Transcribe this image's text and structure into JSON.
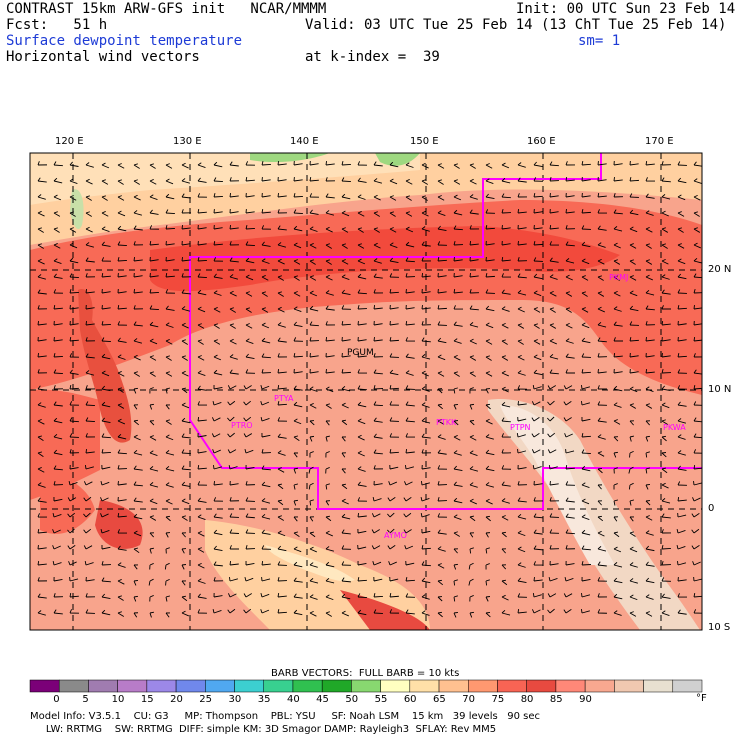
{
  "header": {
    "title": "CONTRAST 15km ARW-GFS init   NCAR/MMMM",
    "init": "Init: 00 UTC Sun 23 Feb 14",
    "fcst": "Fcst:   51 h",
    "valid": "Valid: 03 UTC Tue 25 Feb 14 (13 ChT Tue 25 Feb 14)",
    "field": "Surface dewpoint temperature",
    "smooth": "sm= 1",
    "vectors": "Horizontal wind vectors",
    "level": "at k-index =  39"
  },
  "axes": {
    "lon_labels": [
      "120 E",
      "130 E",
      "140 E",
      "150 E",
      "160 E",
      "170 E"
    ],
    "lat_labels": [
      "20 N",
      "10 N",
      "0",
      "10 S"
    ]
  },
  "stations": [
    "PKMJ",
    "PGUM",
    "PTYA",
    "PTRO",
    "PTKK",
    "PTPN",
    "PKWA",
    "AYMO"
  ],
  "legend": {
    "barb_note": "BARB VECTORS:  FULL BARB = 10 kts",
    "labels": [
      "0",
      "5",
      "10",
      "15",
      "20",
      "25",
      "30",
      "35",
      "40",
      "45",
      "50",
      "55",
      "60",
      "65",
      "70",
      "75",
      "80",
      "85",
      "90"
    ],
    "unit": "°F",
    "colors": [
      "#7b0078",
      "#8a8a8a",
      "#a07cb0",
      "#b87cc8",
      "#9c88e8",
      "#7088ec",
      "#50a8f0",
      "#3ccfd0",
      "#38d090",
      "#30c050",
      "#20a828",
      "#88d870",
      "#ffffc0",
      "#ffe0a8",
      "#ffc090",
      "#ff9870",
      "#f86454",
      "#e84a40",
      "#ff8878",
      "#f8a890",
      "#f0c8b0",
      "#e8e0d0",
      "#d0d0d0"
    ]
  },
  "footer": {
    "line1": "Model Info: V3.5.1    CU: G3     MP: Thompson    PBL: YSU     SF: Noah LSM    15 km   39 levels   90 sec",
    "line2": "     LW: RRTMG    SW: RRTMG  DIFF: simple KM: 3D Smagor DAMP: Rayleigh3  SFLAY: Rev MM5"
  }
}
